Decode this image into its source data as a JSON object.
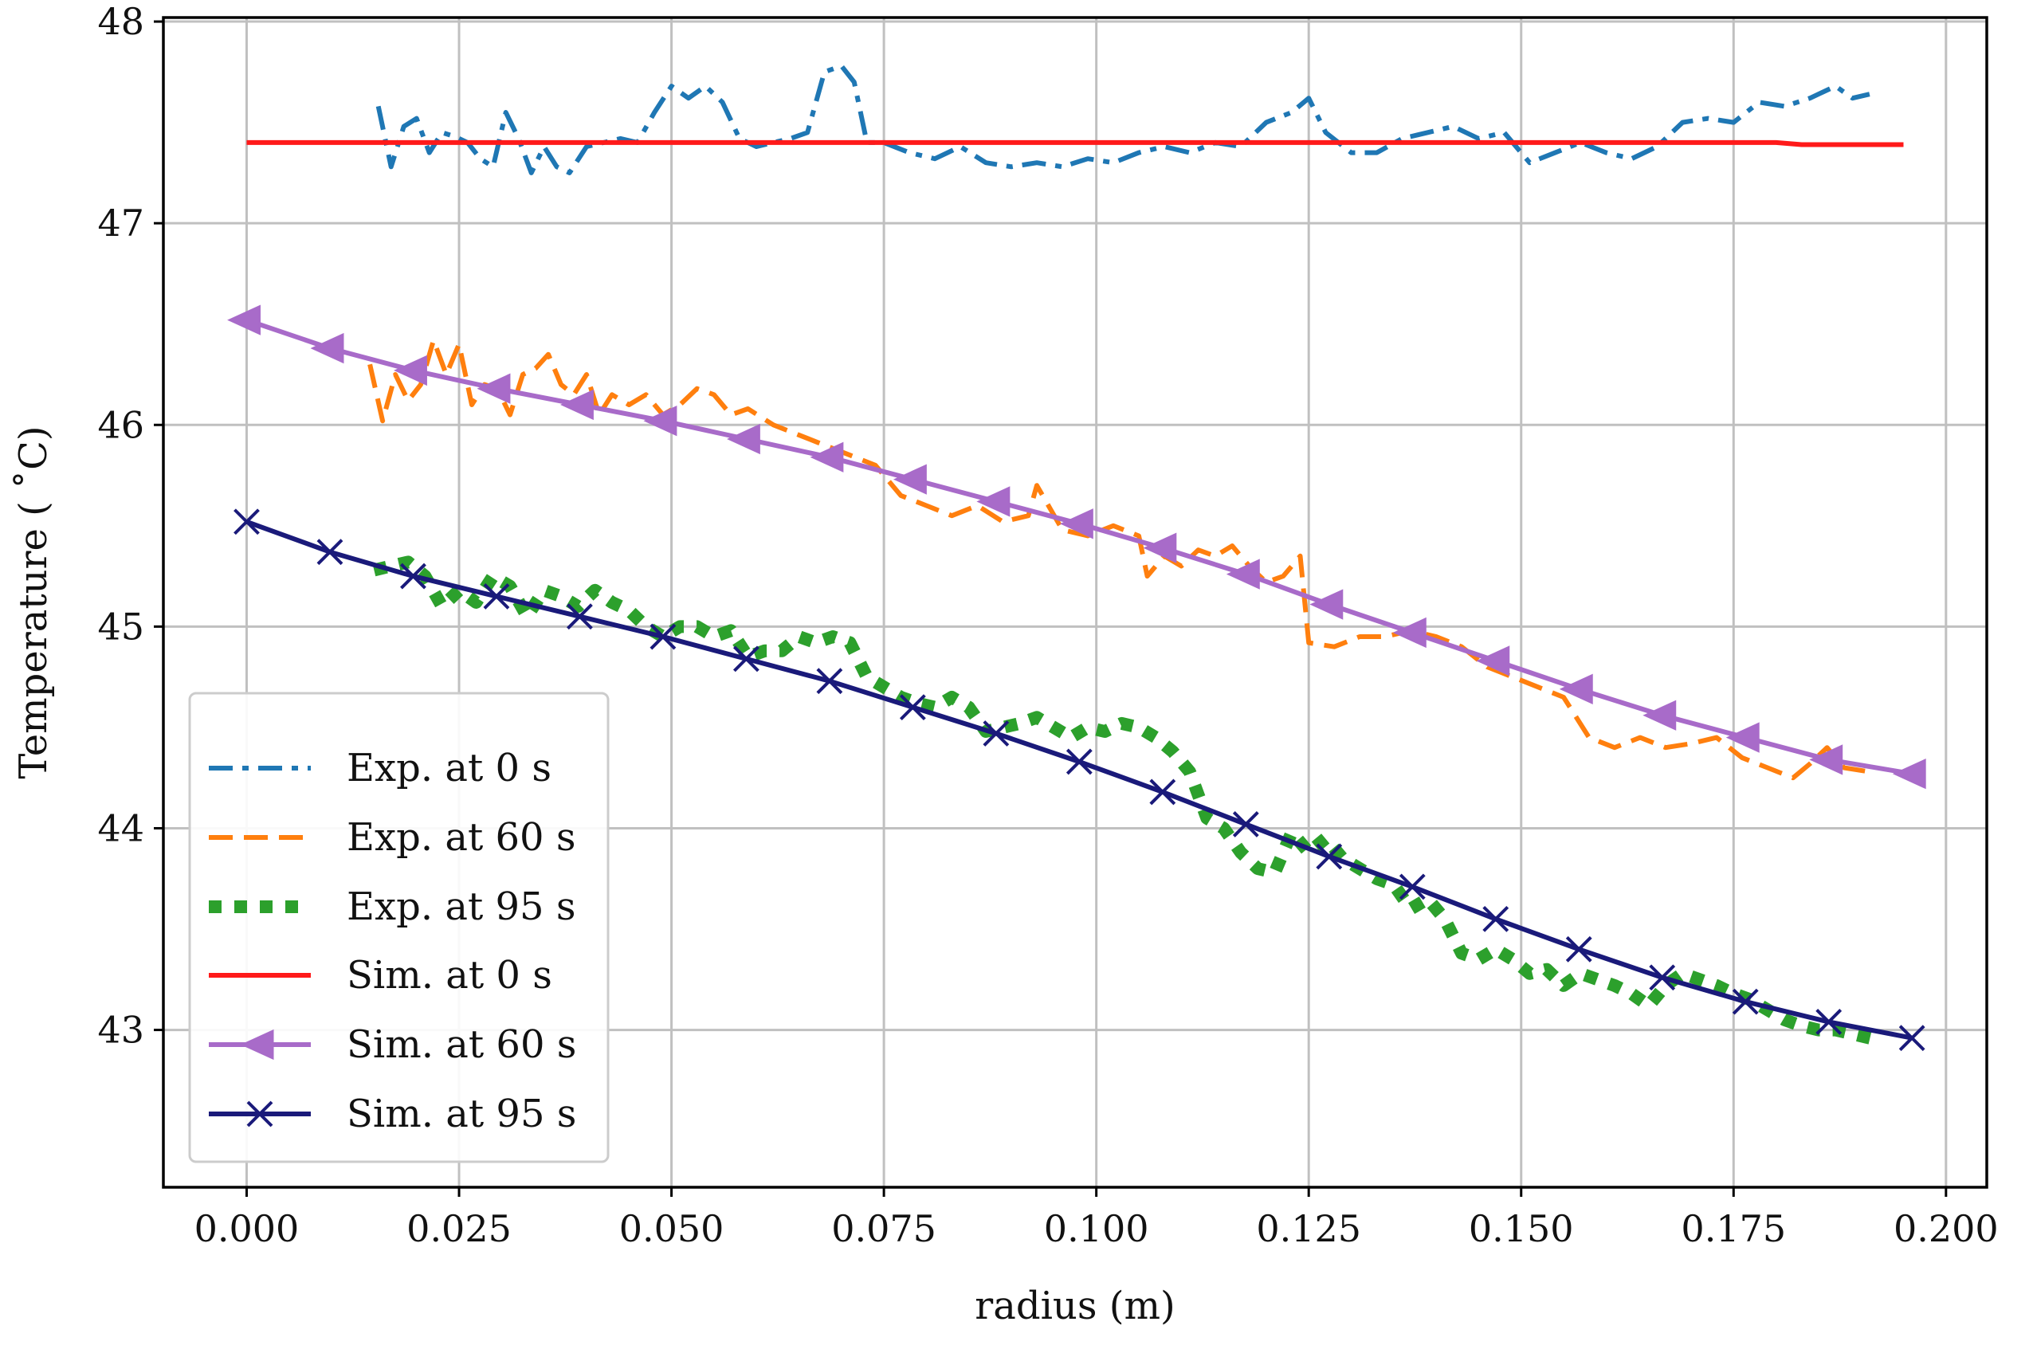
{
  "chart_data": {
    "type": "line",
    "title": "",
    "xlabel": "radius (m)",
    "ylabel": "Temperature ( ˚C)",
    "xlim": [
      -0.0098,
      0.2048
    ],
    "ylim": [
      42.22,
      48.02
    ],
    "grid": true,
    "legend_position": "lower-left",
    "xticks": [
      0.0,
      0.025,
      0.05,
      0.075,
      0.1,
      0.125,
      0.15,
      0.175,
      0.2
    ],
    "xtick_labels": [
      "0.000",
      "0.025",
      "0.050",
      "0.075",
      "0.100",
      "0.125",
      "0.150",
      "0.175",
      "0.200"
    ],
    "yticks": [
      43,
      44,
      45,
      46,
      47,
      48
    ],
    "ytick_labels": [
      "43",
      "44",
      "45",
      "46",
      "47",
      "48"
    ],
    "colors": {
      "exp0": "#1f77b4",
      "exp60": "#ff7f0e",
      "exp95": "#2ca02c",
      "sim0": "#ff1a1a",
      "sim60": "#a86bc9",
      "sim95": "#1a1a7a",
      "grid": "#c0c0c0",
      "axis": "#000000"
    },
    "series": [
      {
        "name": "Exp. at 0 s",
        "style": "dashdot",
        "color_key": "exp0",
        "x": [
          0.0155,
          0.017,
          0.0185,
          0.02,
          0.0215,
          0.023,
          0.0245,
          0.026,
          0.0275,
          0.029,
          0.0305,
          0.032,
          0.0335,
          0.035,
          0.0365,
          0.038,
          0.04,
          0.042,
          0.044,
          0.046,
          0.048,
          0.05,
          0.052,
          0.054,
          0.056,
          0.058,
          0.06,
          0.062,
          0.064,
          0.066,
          0.068,
          0.07,
          0.0715,
          0.073,
          0.075,
          0.078,
          0.081,
          0.084,
          0.087,
          0.09,
          0.093,
          0.096,
          0.099,
          0.102,
          0.105,
          0.108,
          0.111,
          0.114,
          0.117,
          0.12,
          0.123,
          0.125,
          0.127,
          0.13,
          0.133,
          0.136,
          0.139,
          0.142,
          0.145,
          0.148,
          0.151,
          0.154,
          0.157,
          0.16,
          0.163,
          0.166,
          0.169,
          0.172,
          0.175,
          0.178,
          0.181,
          0.184,
          0.187,
          0.189,
          0.191
        ],
        "y": [
          47.58,
          47.28,
          47.48,
          47.52,
          47.35,
          47.45,
          47.43,
          47.4,
          47.32,
          47.28,
          47.55,
          47.42,
          47.25,
          47.38,
          47.28,
          47.25,
          47.38,
          47.4,
          47.42,
          47.4,
          47.55,
          47.68,
          47.62,
          47.68,
          47.6,
          47.42,
          47.38,
          47.4,
          47.42,
          47.45,
          47.75,
          47.78,
          47.7,
          47.4,
          47.4,
          47.35,
          47.32,
          47.38,
          47.3,
          47.28,
          47.3,
          47.28,
          47.32,
          47.3,
          47.35,
          47.38,
          47.35,
          47.4,
          47.38,
          47.5,
          47.55,
          47.62,
          47.45,
          47.35,
          47.35,
          47.42,
          47.45,
          47.48,
          47.42,
          47.45,
          47.3,
          47.35,
          47.4,
          47.35,
          47.32,
          47.38,
          47.5,
          47.52,
          47.5,
          47.6,
          47.58,
          47.62,
          47.68,
          47.62,
          47.64
        ]
      },
      {
        "name": "Exp. at 60 s",
        "style": "dashed",
        "color_key": "exp60",
        "x": [
          0.0145,
          0.016,
          0.0175,
          0.019,
          0.0205,
          0.022,
          0.0235,
          0.025,
          0.0265,
          0.028,
          0.0295,
          0.031,
          0.0325,
          0.034,
          0.0355,
          0.037,
          0.0385,
          0.04,
          0.0415,
          0.043,
          0.045,
          0.047,
          0.049,
          0.051,
          0.053,
          0.055,
          0.057,
          0.059,
          0.062,
          0.065,
          0.068,
          0.071,
          0.074,
          0.077,
          0.08,
          0.083,
          0.086,
          0.089,
          0.092,
          0.093,
          0.096,
          0.099,
          0.102,
          0.105,
          0.106,
          0.108,
          0.11,
          0.112,
          0.114,
          0.116,
          0.118,
          0.12,
          0.122,
          0.124,
          0.125,
          0.128,
          0.131,
          0.134,
          0.137,
          0.14,
          0.143,
          0.146,
          0.149,
          0.152,
          0.155,
          0.158,
          0.161,
          0.164,
          0.167,
          0.17,
          0.173,
          0.176,
          0.179,
          0.182,
          0.184,
          0.186,
          0.188,
          0.191
        ],
        "y": [
          46.3,
          46.02,
          46.25,
          46.12,
          46.2,
          46.42,
          46.25,
          46.4,
          46.1,
          46.2,
          46.18,
          46.05,
          46.25,
          46.28,
          46.35,
          46.2,
          46.15,
          46.25,
          46.05,
          46.15,
          46.1,
          46.15,
          46.05,
          46.1,
          46.18,
          46.15,
          46.05,
          46.08,
          46.0,
          45.95,
          45.9,
          45.85,
          45.8,
          45.65,
          45.6,
          45.55,
          45.6,
          45.52,
          45.55,
          45.7,
          45.48,
          45.45,
          45.5,
          45.45,
          45.25,
          45.35,
          45.3,
          45.38,
          45.35,
          45.4,
          45.3,
          45.22,
          45.25,
          45.35,
          44.92,
          44.9,
          44.95,
          44.95,
          44.98,
          44.95,
          44.9,
          44.8,
          44.75,
          44.7,
          44.65,
          44.45,
          44.4,
          44.45,
          44.4,
          44.42,
          44.45,
          44.35,
          44.3,
          44.25,
          44.32,
          44.4,
          44.3,
          44.28
        ]
      },
      {
        "name": "Exp. at 95 s",
        "style": "dotted",
        "color_key": "exp95",
        "x": [
          0.015,
          0.017,
          0.019,
          0.021,
          0.023,
          0.025,
          0.027,
          0.029,
          0.031,
          0.033,
          0.035,
          0.037,
          0.039,
          0.041,
          0.043,
          0.045,
          0.047,
          0.049,
          0.051,
          0.053,
          0.055,
          0.057,
          0.059,
          0.061,
          0.063,
          0.065,
          0.067,
          0.069,
          0.071,
          0.073,
          0.075,
          0.077,
          0.079,
          0.081,
          0.083,
          0.085,
          0.087,
          0.089,
          0.091,
          0.093,
          0.095,
          0.097,
          0.099,
          0.101,
          0.103,
          0.105,
          0.107,
          0.109,
          0.111,
          0.113,
          0.115,
          0.117,
          0.119,
          0.121,
          0.123,
          0.125,
          0.127,
          0.129,
          0.131,
          0.133,
          0.135,
          0.137,
          0.139,
          0.141,
          0.143,
          0.145,
          0.147,
          0.149,
          0.151,
          0.153,
          0.155,
          0.157,
          0.159,
          0.161,
          0.163,
          0.165,
          0.167,
          0.169,
          0.171,
          0.173,
          0.175,
          0.177,
          0.179,
          0.181,
          0.183,
          0.185,
          0.187,
          0.189,
          0.192
        ],
        "y": [
          45.28,
          45.3,
          45.32,
          45.25,
          45.1,
          45.18,
          45.12,
          45.25,
          45.2,
          45.05,
          45.18,
          45.15,
          45.1,
          45.18,
          45.12,
          45.08,
          45.0,
          44.95,
          45.0,
          45.0,
          44.95,
          44.98,
          44.85,
          44.88,
          44.88,
          44.95,
          44.92,
          44.95,
          44.92,
          44.75,
          44.7,
          44.65,
          44.62,
          44.6,
          44.65,
          44.6,
          44.48,
          44.5,
          44.52,
          44.55,
          44.5,
          44.45,
          44.5,
          44.48,
          44.52,
          44.5,
          44.45,
          44.38,
          44.28,
          44.05,
          44.0,
          43.88,
          43.8,
          43.78,
          43.98,
          43.88,
          43.95,
          43.85,
          43.8,
          43.75,
          43.72,
          43.6,
          43.65,
          43.55,
          43.38,
          43.35,
          43.4,
          43.35,
          43.28,
          43.3,
          43.22,
          43.28,
          43.25,
          43.22,
          43.18,
          43.12,
          43.22,
          43.28,
          43.25,
          43.22,
          43.18,
          43.15,
          43.1,
          43.05,
          43.02,
          43.0,
          43.0,
          42.98,
          42.95
        ]
      },
      {
        "name": "Sim. at 0 s",
        "style": "solid",
        "color_key": "sim0",
        "x": [
          0.0,
          0.05,
          0.1,
          0.15,
          0.18,
          0.183,
          0.195
        ],
        "y": [
          47.4,
          47.4,
          47.4,
          47.4,
          47.4,
          47.39,
          47.39
        ]
      },
      {
        "name": "Sim. at 60 s",
        "style": "solid",
        "color_key": "sim60",
        "marker": "triangle-left",
        "x": [
          0.0,
          0.0098,
          0.0196,
          0.0294,
          0.0392,
          0.049,
          0.0588,
          0.0686,
          0.0784,
          0.0882,
          0.098,
          0.1078,
          0.1176,
          0.1274,
          0.1372,
          0.147,
          0.1568,
          0.1666,
          0.1764,
          0.1862,
          0.196
        ],
        "y": [
          46.52,
          46.38,
          46.27,
          46.18,
          46.1,
          46.02,
          45.93,
          45.84,
          45.73,
          45.62,
          45.51,
          45.39,
          45.26,
          45.11,
          44.97,
          44.83,
          44.69,
          44.56,
          44.45,
          44.34,
          44.27
        ]
      },
      {
        "name": "Sim. at 95 s",
        "style": "solid",
        "color_key": "sim95",
        "marker": "x",
        "x": [
          0.0,
          0.0098,
          0.0196,
          0.0294,
          0.0392,
          0.049,
          0.0588,
          0.0686,
          0.0784,
          0.0882,
          0.098,
          0.1078,
          0.1176,
          0.1274,
          0.1372,
          0.147,
          0.1568,
          0.1666,
          0.1764,
          0.1862,
          0.196
        ],
        "y": [
          45.52,
          45.37,
          45.25,
          45.15,
          45.05,
          44.95,
          44.84,
          44.73,
          44.6,
          44.47,
          44.33,
          44.18,
          44.02,
          43.86,
          43.71,
          43.55,
          43.4,
          43.26,
          43.14,
          43.04,
          42.96
        ]
      }
    ]
  }
}
